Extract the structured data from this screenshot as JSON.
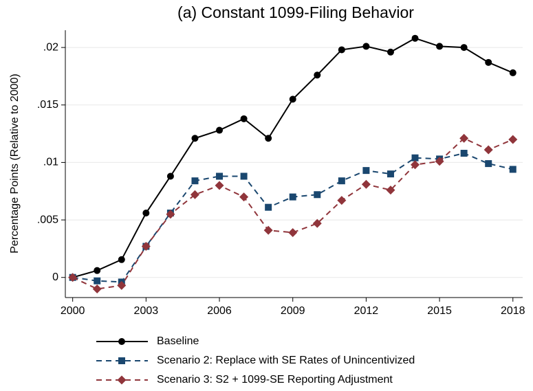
{
  "chart_data": {
    "type": "line",
    "title": "(a) Constant 1099-Filing Behavior",
    "ylabel": "Percentage Points (Relative to 2000)",
    "x": [
      2000,
      2001,
      2002,
      2003,
      2004,
      2005,
      2006,
      2007,
      2008,
      2009,
      2010,
      2011,
      2012,
      2013,
      2014,
      2015,
      2016,
      2017,
      2018
    ],
    "series": [
      {
        "name": "Baseline",
        "color": "#000000",
        "marker": "circle",
        "dash": false,
        "values": [
          0,
          0.0006,
          0.00155,
          0.0056,
          0.0088,
          0.0121,
          0.0128,
          0.0138,
          0.0121,
          0.0155,
          0.0176,
          0.0198,
          0.0201,
          0.0196,
          0.0208,
          0.0201,
          0.02,
          0.0187,
          0.0178
        ]
      },
      {
        "name": "Scenario 2: Replace with SE Rates of Unincentivized",
        "color": "#1a476f",
        "marker": "square",
        "dash": true,
        "values": [
          0,
          -0.0003,
          -0.0004,
          0.0027,
          0.0056,
          0.0084,
          0.0088,
          0.0088,
          0.0061,
          0.007,
          0.0072,
          0.0084,
          0.0093,
          0.009,
          0.0104,
          0.0103,
          0.0108,
          0.0099,
          0.0094
        ]
      },
      {
        "name": "Scenario 3: S2 + 1099-SE Reporting Adjustment",
        "color": "#90353b",
        "marker": "diamond",
        "dash": true,
        "values": [
          0,
          -0.001,
          -0.0007,
          0.0027,
          0.0055,
          0.0072,
          0.008,
          0.007,
          0.0041,
          0.0039,
          0.0047,
          0.0067,
          0.0081,
          0.0076,
          0.0098,
          0.0101,
          0.0121,
          0.0111,
          0.012
        ]
      }
    ],
    "xlim": [
      1999.7,
      2018.4
    ],
    "xticks": [
      2000,
      2003,
      2006,
      2009,
      2012,
      2015,
      2018
    ],
    "ylim": [
      -0.00175,
      0.0215
    ],
    "yticks": [
      0,
      {
        "value": 0.005,
        "label": ".005"
      },
      {
        "value": 0.01,
        "label": ".01"
      },
      {
        "value": 0.015,
        "label": ".015"
      },
      {
        "value": 0.02,
        "label": ".02"
      }
    ],
    "grid": true,
    "legend": "bottom"
  }
}
